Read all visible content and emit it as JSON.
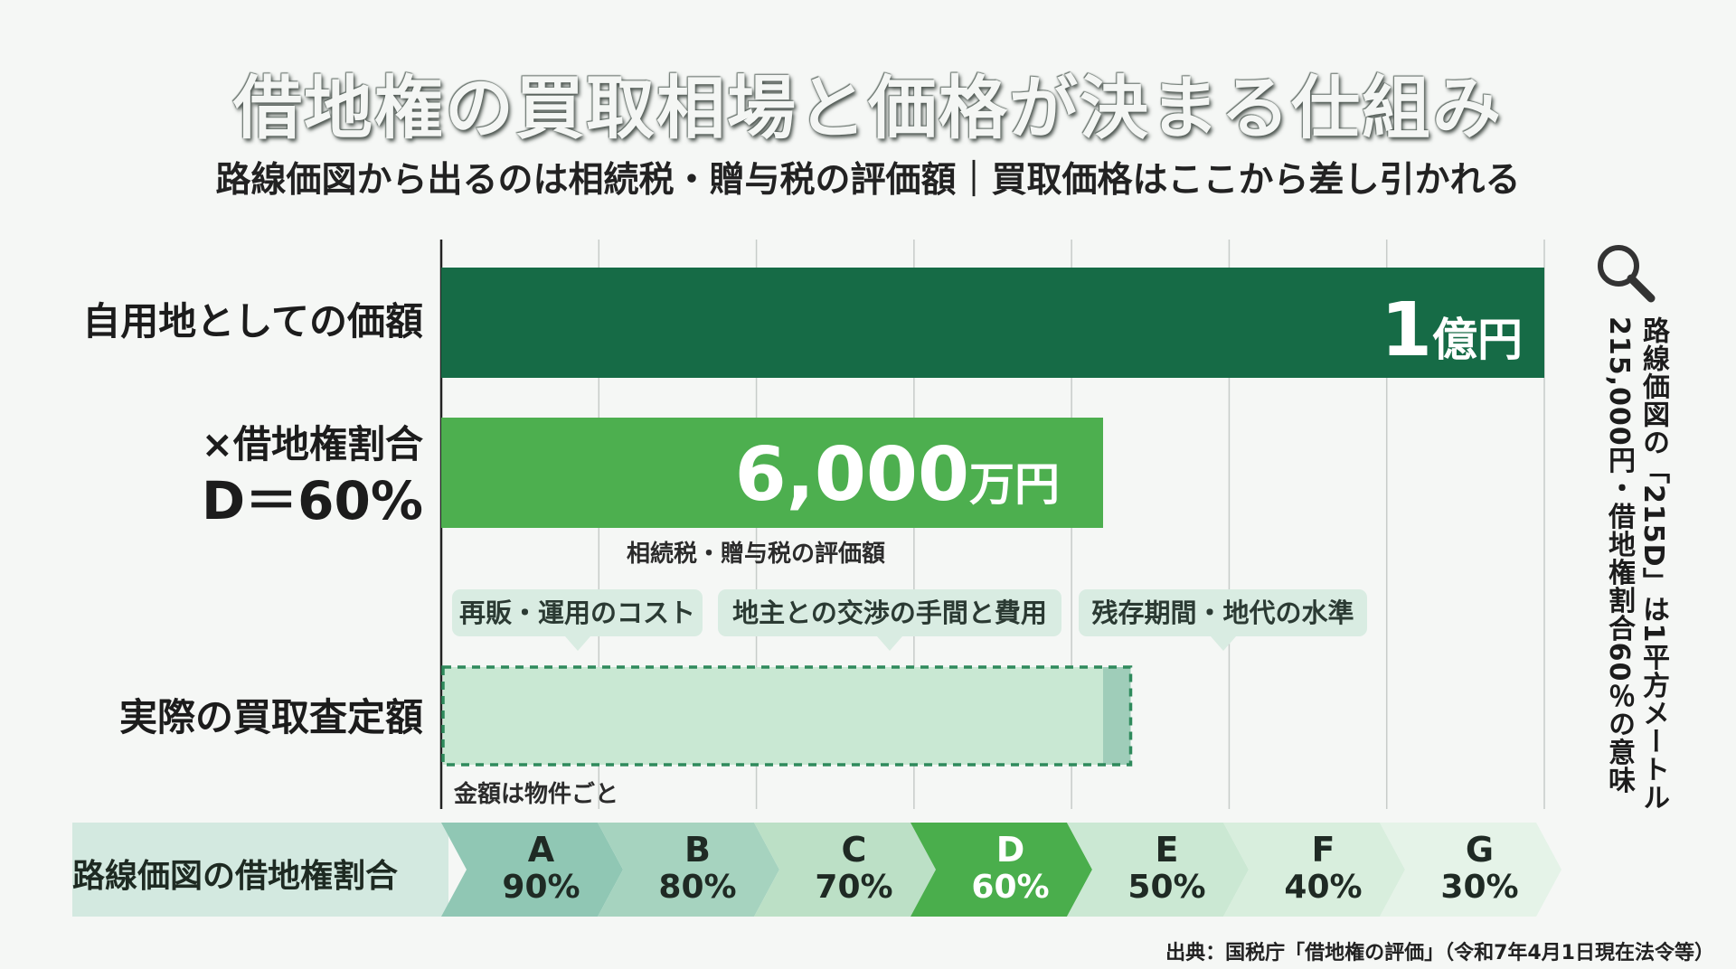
{
  "title": "借地権の買取相場と価格が決まる仕組み",
  "subtitle": "路線価図から出るのは相続税・贈与税の評価額｜買取価格はここから差し引かれる",
  "colors": {
    "dark_green": "#166b46",
    "mid_green": "#4daf4f",
    "light_green": "#c9e8d3",
    "teal_light": "#9fcdb9",
    "callout_bg": "#d9ece2"
  },
  "chart_data": {
    "type": "bar",
    "orientation": "horizontal",
    "bars": [
      {
        "label": "自用地としての価額",
        "value": 10000,
        "value_num": "1",
        "value_unit": "億円"
      },
      {
        "label_line1": "×借地権割合",
        "label_line2": "D＝60%",
        "value": 6000,
        "value_num": "6,000",
        "value_unit": "万円",
        "note": "相続税・贈与税の評価額"
      },
      {
        "label": "実際の買取査定額",
        "value": 6250,
        "value_bracket": 6000,
        "note": "金額は物件ごと",
        "style": "dashed"
      }
    ],
    "value_unit": "万円",
    "xlim": [
      0,
      10000
    ],
    "grid": true,
    "deductions": [
      "再販・運用のコスト",
      "地主との交渉の手間と費用",
      "残存期間・地代の水準"
    ]
  },
  "band": {
    "label": "路線価図の借地権割合",
    "items": [
      {
        "letter": "A",
        "pct": "90%"
      },
      {
        "letter": "B",
        "pct": "80%"
      },
      {
        "letter": "C",
        "pct": "70%"
      },
      {
        "letter": "D",
        "pct": "60%",
        "highlight": true
      },
      {
        "letter": "E",
        "pct": "50%"
      },
      {
        "letter": "F",
        "pct": "40%"
      },
      {
        "letter": "G",
        "pct": "30%"
      }
    ]
  },
  "side_note": {
    "line1": "路線価図の「215D」は1平方メートル",
    "line2": "215,000円・借地権割合60％の意味",
    "icon": "magnifier-icon"
  },
  "source": "出典：国税庁「借地権の評価」（令和7年4月1日現在法令等）"
}
